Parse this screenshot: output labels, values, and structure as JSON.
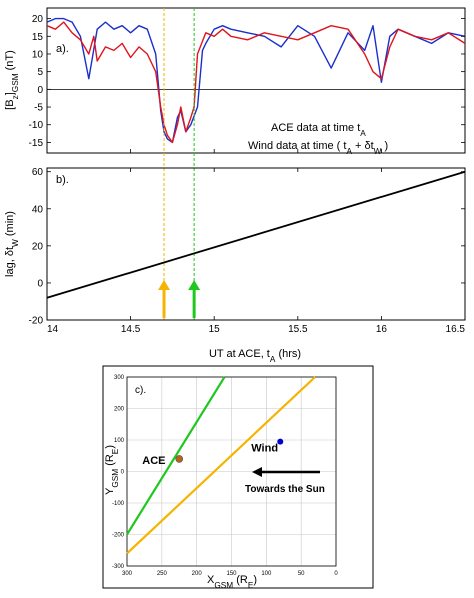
{
  "chart_data": [
    {
      "panel_label": "a).",
      "type": "line",
      "ylabel": "[B<sub>z</sub>]<sub>GSM</sub> (nT)",
      "xlim": [
        14,
        16.5
      ],
      "ylim": [
        -18,
        23
      ],
      "yticks": [
        20,
        15,
        10,
        5,
        0,
        -5,
        -10,
        -15
      ],
      "legend": {
        "position": "bottom-right",
        "entries": [
          "ACE data at time t<sub>A</sub>",
          "Wind data at time ( t<sub>A</sub> + δt<sub>W</sub> )"
        ]
      },
      "colors": {
        "ace": "#e0141c",
        "wind": "#1a2fcc",
        "orange_marker": "#f5b400",
        "green_marker": "#1ec81e"
      },
      "vlines": [
        14.7,
        14.88
      ],
      "series": [
        {
          "name": "ACE data at time t<sub>A</sub>",
          "key": "ace",
          "x": [
            14.0,
            14.05,
            14.1,
            14.15,
            14.2,
            14.25,
            14.28,
            14.3,
            14.35,
            14.4,
            14.45,
            14.5,
            14.55,
            14.6,
            14.65,
            14.68,
            14.7,
            14.72,
            14.75,
            14.78,
            14.8,
            14.83,
            14.86,
            14.88,
            14.9,
            14.95,
            15.0,
            15.05,
            15.1,
            15.2,
            15.3,
            15.4,
            15.5,
            15.6,
            15.7,
            15.8,
            15.9,
            15.95,
            16.0,
            16.05,
            16.1,
            16.2,
            16.3,
            16.4,
            16.5
          ],
          "y": [
            18,
            17,
            19,
            16,
            14,
            10,
            15,
            8,
            12,
            11,
            13,
            9,
            12,
            10,
            5,
            -5,
            -10,
            -13,
            -15,
            -10,
            -5,
            -12,
            -8,
            -5,
            10,
            16,
            15,
            17,
            15,
            14,
            16,
            15,
            14,
            16,
            18,
            17,
            10,
            5,
            3,
            12,
            17,
            15,
            14,
            16,
            13
          ]
        },
        {
          "name": "Wind data at time ( t<sub>A</sub> + δt<sub>W</sub> )",
          "key": "wind",
          "x": [
            14.0,
            14.05,
            14.1,
            14.15,
            14.2,
            14.25,
            14.3,
            14.35,
            14.4,
            14.45,
            14.5,
            14.55,
            14.6,
            14.65,
            14.68,
            14.7,
            14.72,
            14.75,
            14.78,
            14.8,
            14.83,
            14.86,
            14.9,
            14.93,
            14.95,
            15.0,
            15.05,
            15.1,
            15.2,
            15.3,
            15.4,
            15.5,
            15.6,
            15.7,
            15.8,
            15.9,
            15.95,
            16.0,
            16.05,
            16.1,
            16.2,
            16.3,
            16.4,
            16.5
          ],
          "y": [
            19,
            20,
            20,
            19,
            15,
            3,
            17,
            19,
            17,
            18,
            16,
            18,
            17,
            10,
            -6,
            -12,
            -14,
            -15,
            -8,
            -6,
            -12,
            -10,
            -5,
            11,
            13,
            17,
            18,
            17,
            16,
            15,
            12,
            18,
            15,
            6,
            16,
            11,
            18,
            2,
            15,
            17,
            15,
            13,
            16,
            15
          ]
        }
      ]
    },
    {
      "panel_label": "b).",
      "type": "line",
      "ylabel": "lag, δt<sub>W</sub> (min)",
      "xlabel": "UT at ACE, t<sub>A</sub> (hrs)",
      "xlim": [
        14,
        16.5
      ],
      "ylim": [
        -20,
        62
      ],
      "xticks": [
        "14",
        "14.5",
        "15",
        "15.5",
        "16",
        "16.5"
      ],
      "yticks": [
        60,
        40,
        20,
        0,
        -20
      ],
      "series": [
        {
          "key": "lag",
          "x": [
            14.0,
            16.5
          ],
          "y": [
            -8,
            60
          ]
        }
      ],
      "arrows": [
        {
          "x": 14.7,
          "color": "orange_marker"
        },
        {
          "x": 14.88,
          "color": "green_marker"
        }
      ]
    },
    {
      "panel_label": "c).",
      "type": "scatter",
      "xlabel": "X<sub>GSM</sub> (R<sub>E</sub>)",
      "ylabel": "Y<sub>GSM</sub> (R<sub>E</sub>)",
      "xlim": [
        300,
        0
      ],
      "ylim": [
        -300,
        300
      ],
      "xticks": [
        "300",
        "250",
        "200",
        "150",
        "100",
        "50",
        "0"
      ],
      "yticks": [
        "300",
        "200",
        "100",
        "0",
        "-100",
        "-200",
        "-300"
      ],
      "grid": true,
      "points": [
        {
          "name": "ACE",
          "x": 225,
          "y": 40,
          "color": "#b5651d"
        },
        {
          "name": "Wind",
          "x": 80,
          "y": 95,
          "color": "#0000cc"
        }
      ],
      "lines": [
        {
          "color": "green_marker",
          "x": [
            300,
            160
          ],
          "y": [
            -200,
            300
          ]
        },
        {
          "color": "orange_marker",
          "x": [
            300,
            30
          ],
          "y": [
            -260,
            300
          ]
        }
      ],
      "annotation": "Towards the Sun"
    }
  ]
}
